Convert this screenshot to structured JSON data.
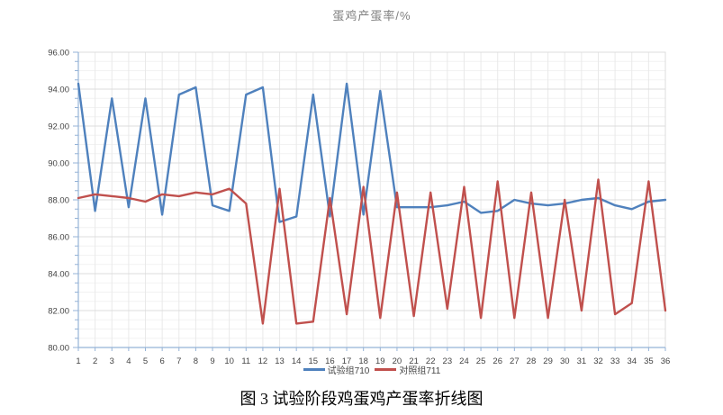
{
  "title": "蛋鸡产蛋率/%",
  "caption": "图 3 试验阶段鸡蛋鸡产蛋率折线图",
  "chart_data": {
    "type": "line",
    "title": "蛋鸡产蛋率/%",
    "x_categories": [
      1,
      2,
      3,
      4,
      5,
      6,
      7,
      8,
      9,
      10,
      11,
      12,
      13,
      14,
      15,
      16,
      17,
      18,
      19,
      20,
      21,
      22,
      23,
      24,
      25,
      26,
      27,
      28,
      29,
      30,
      31,
      32,
      33,
      34,
      35,
      36
    ],
    "series": [
      {
        "name": "试验组710",
        "color": "#4f81bd",
        "values": [
          94.3,
          87.4,
          93.5,
          87.6,
          93.5,
          87.2,
          93.7,
          94.1,
          87.7,
          87.4,
          93.7,
          94.1,
          86.8,
          87.1,
          93.7,
          87.1,
          94.3,
          87.2,
          93.9,
          87.6,
          87.6,
          87.6,
          87.7,
          87.9,
          87.3,
          87.4,
          88.0,
          87.8,
          87.7,
          87.8,
          88.0,
          88.1,
          87.7,
          87.5,
          87.9,
          88.0
        ]
      },
      {
        "name": "对照组711",
        "color": "#c0504d",
        "values": [
          88.1,
          88.3,
          88.2,
          88.1,
          87.9,
          88.3,
          88.2,
          88.4,
          88.3,
          88.6,
          87.8,
          81.3,
          88.6,
          81.3,
          81.4,
          88.1,
          81.8,
          88.7,
          81.6,
          88.4,
          81.7,
          88.4,
          82.1,
          88.7,
          81.6,
          89.0,
          81.6,
          88.4,
          81.6,
          88.0,
          82.0,
          89.1,
          81.8,
          82.4,
          89.0,
          82.0
        ]
      }
    ],
    "ylim": [
      80,
      96
    ],
    "ytick_step": 2,
    "ytick_minor_step": 0.5,
    "ytick_labels": [
      "80.00",
      "82.00",
      "84.00",
      "86.00",
      "88.00",
      "90.00",
      "92.00",
      "94.00",
      "96.00"
    ],
    "grid": true,
    "legend_position": "bottom"
  },
  "colors": {
    "series_blue": "#4f81bd",
    "series_red": "#c0504d",
    "grid_major": "#dcdcdc",
    "grid_minor": "#f2f2f2",
    "grid_vertical": "#e9e9e9",
    "axis_line": "#95b3d7",
    "tick_label": "#444444",
    "title_text": "#7f7f7f"
  }
}
